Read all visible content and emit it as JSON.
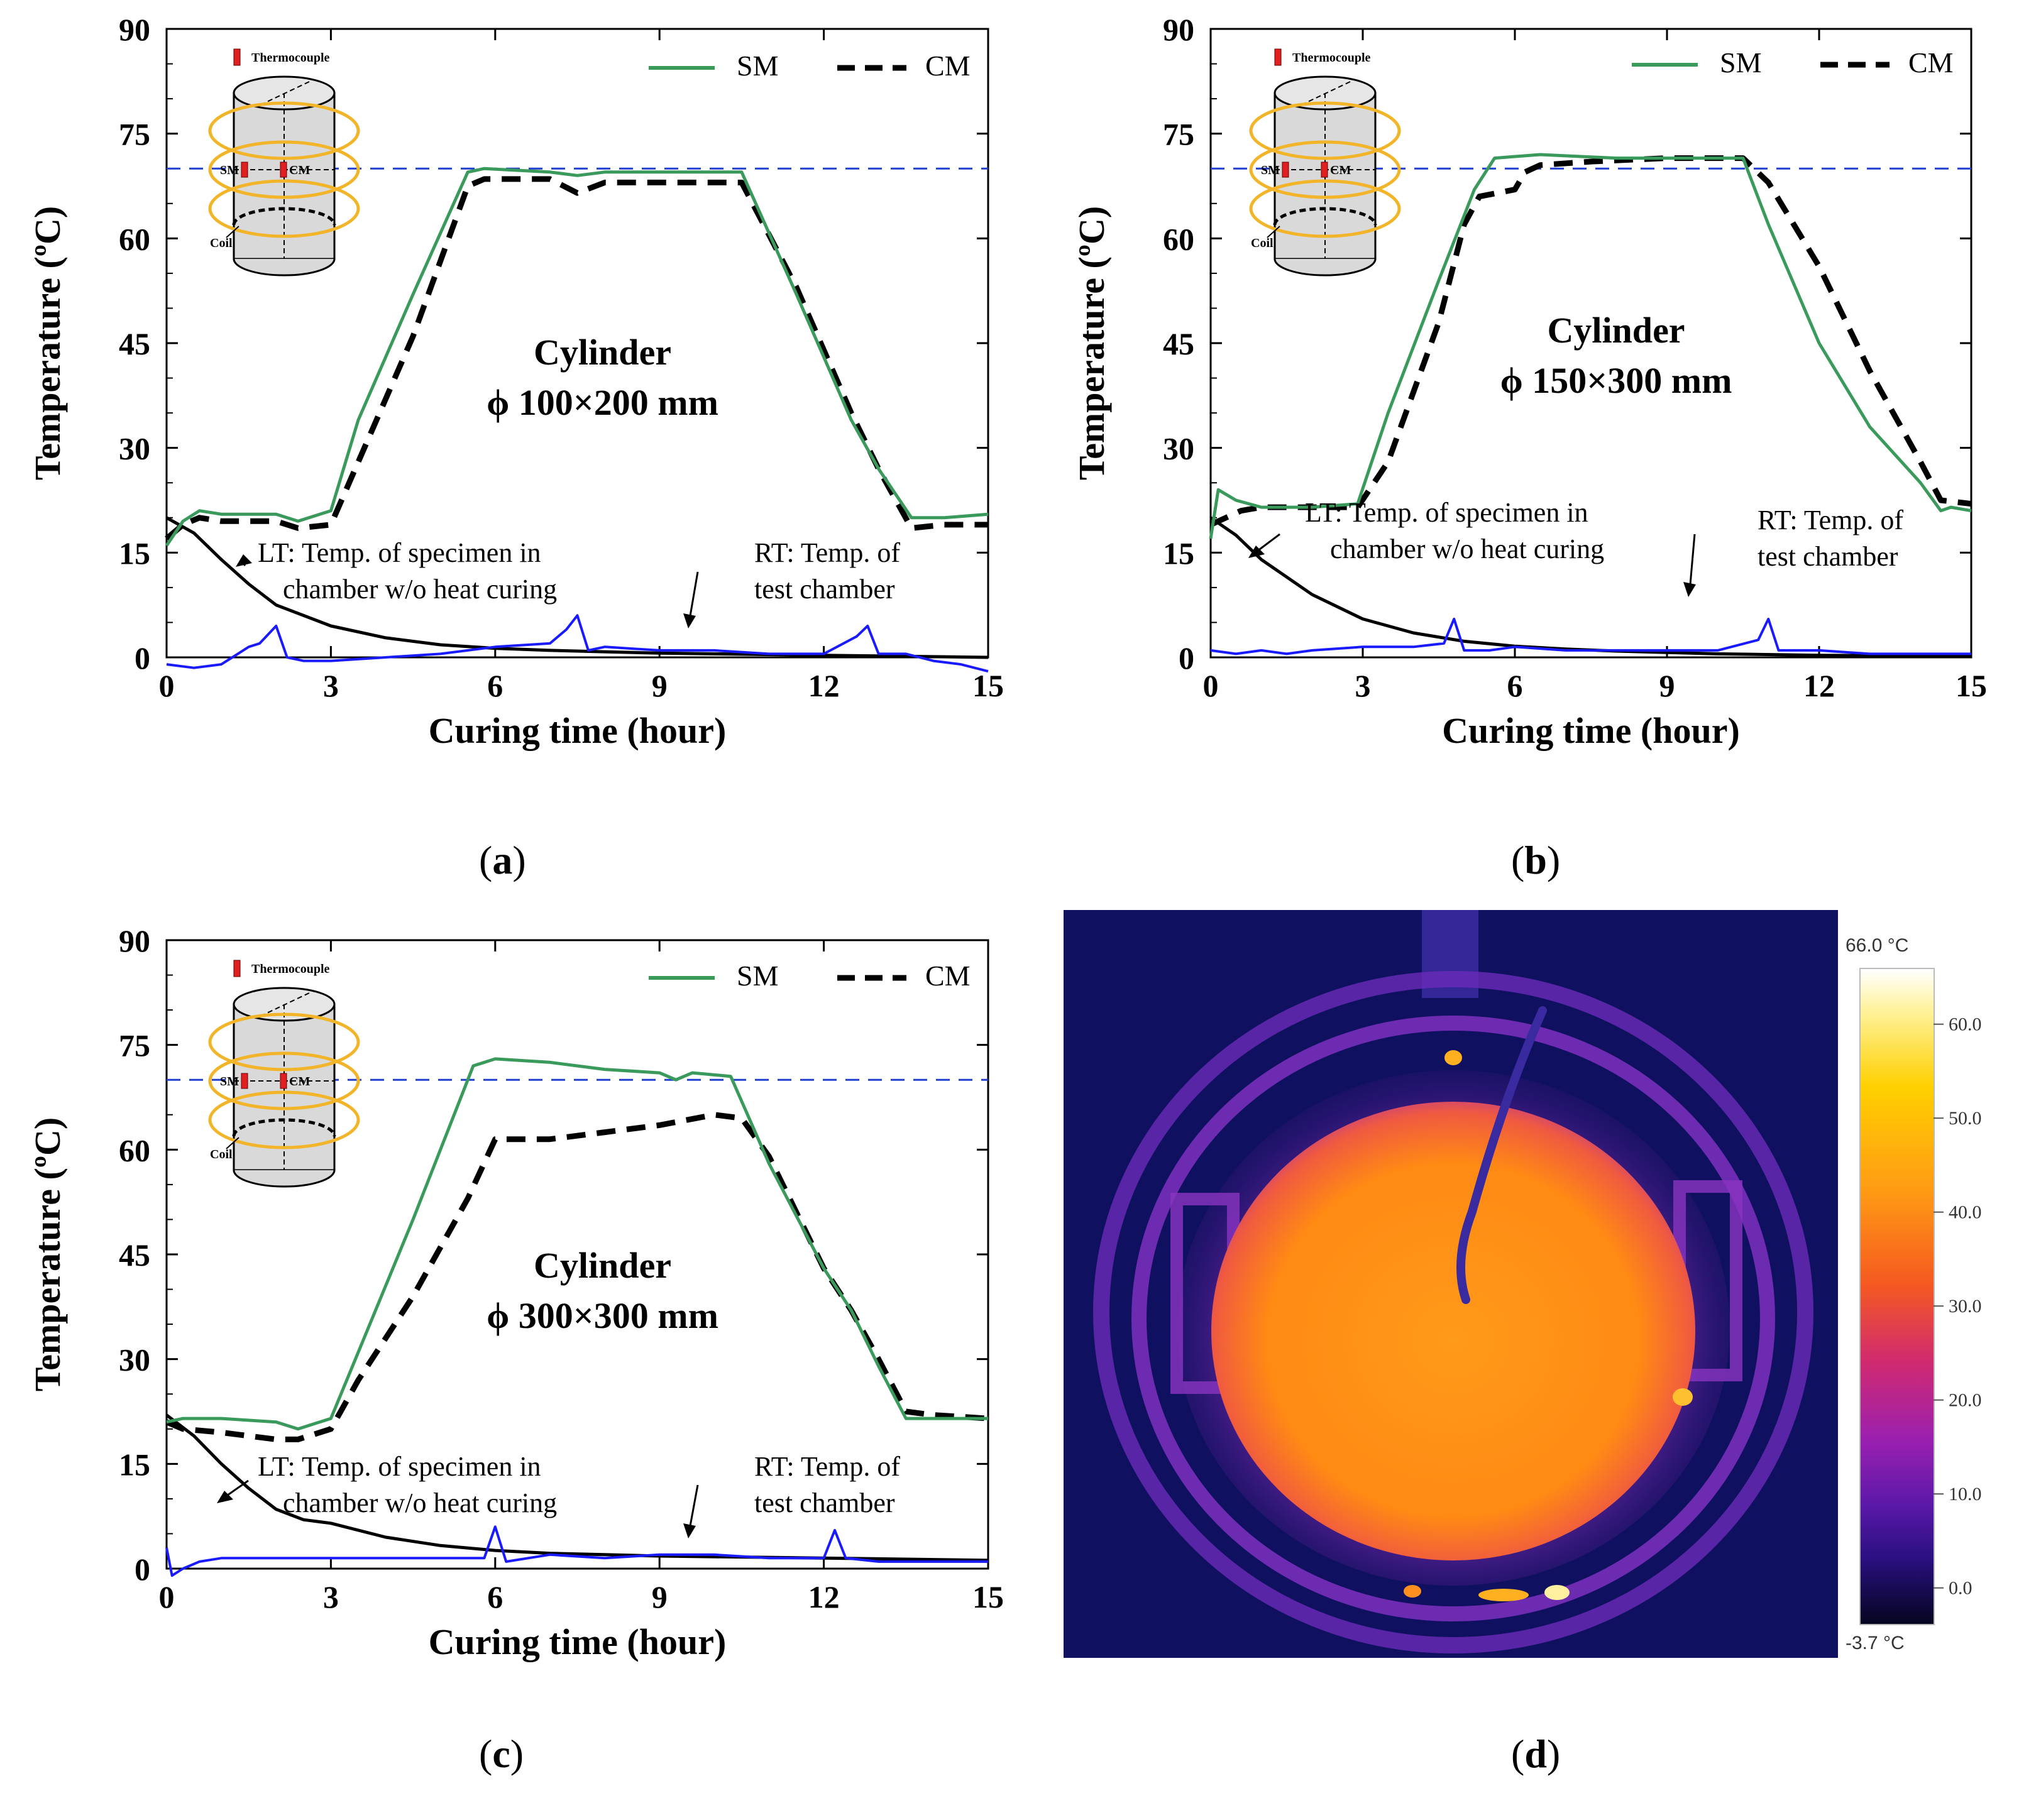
{
  "chart_data": [
    {
      "panel": "a",
      "type": "line",
      "title": "Cylinder",
      "subtitle": "ϕ 100×200 mm",
      "xlabel": "Curing time (hour)",
      "ylabel": "Temperature (ºC)",
      "xlim": [
        0,
        15
      ],
      "ylim": [
        0,
        90
      ],
      "xticks": [
        "0",
        "3",
        "6",
        "9",
        "12",
        "15"
      ],
      "yticks": [
        "0",
        "15",
        "30",
        "45",
        "60",
        "75",
        "90"
      ],
      "reference_line": 70,
      "legend": {
        "sm": "SM",
        "cm": "CM"
      },
      "inset": {
        "thermocouple": "Thermocouple",
        "sm": "SM",
        "cm": "CM",
        "coil": "Coil"
      },
      "annotations": {
        "lt_line1": "LT: Temp. of specimen in",
        "lt_line2": "chamber w/o heat curing",
        "rt_line1": "RT: Temp. of",
        "rt_line2": "test chamber"
      },
      "series": [
        {
          "name": "SM",
          "color": "#3a9a5b",
          "dash": false,
          "x": [
            0,
            0.3,
            0.6,
            1.0,
            2.0,
            2.4,
            3.0,
            3.5,
            4.5,
            5.5,
            5.8,
            7.0,
            7.5,
            8.0,
            9.5,
            10.5,
            11.5,
            12.5,
            13.0,
            13.6,
            14.2,
            15.0
          ],
          "values": [
            16,
            19.5,
            21,
            20.5,
            20.5,
            19.5,
            21,
            34,
            52,
            69.5,
            70,
            69.5,
            69,
            69.5,
            69.5,
            69.5,
            52,
            34,
            27,
            20,
            20,
            20.5
          ]
        },
        {
          "name": "CM",
          "color": "#000000",
          "dash": true,
          "x": [
            0,
            0.3,
            0.6,
            1.0,
            2.0,
            2.4,
            3.0,
            3.5,
            4.5,
            5.5,
            5.8,
            7.0,
            7.5,
            8.0,
            9.5,
            10.5,
            11.5,
            12.5,
            13.0,
            13.6,
            14.2,
            15.0
          ],
          "values": [
            17,
            19,
            20,
            19.5,
            19.5,
            18.5,
            19,
            28,
            46,
            67.5,
            68.5,
            68.5,
            66.5,
            68,
            68,
            68,
            53,
            35,
            27,
            18.5,
            19,
            19
          ]
        },
        {
          "name": "LT",
          "color": "#000000",
          "dash": false,
          "x": [
            0,
            0.5,
            1,
            1.5,
            2,
            3,
            4,
            5,
            6,
            7,
            8,
            9,
            10,
            12,
            15
          ],
          "values": [
            20,
            17.8,
            14,
            10.5,
            7.5,
            4.5,
            2.8,
            1.8,
            1.3,
            1.0,
            0.8,
            0.6,
            0.5,
            0.3,
            0
          ]
        },
        {
          "name": "RT",
          "color": "#1a1aff",
          "dash": false,
          "x": [
            0,
            0.5,
            1.0,
            1.2,
            1.5,
            1.7,
            2.0,
            2.2,
            2.5,
            3.0,
            4.0,
            5.0,
            6.0,
            7.0,
            7.3,
            7.5,
            7.7,
            8.0,
            9.0,
            10.0,
            11.0,
            12.0,
            12.6,
            12.8,
            13.0,
            13.5,
            14.0,
            14.5,
            15.0
          ],
          "values": [
            -1,
            -1.5,
            -1,
            0,
            1.5,
            2,
            4.5,
            0,
            -0.5,
            -0.5,
            0,
            0.5,
            1.5,
            2,
            4,
            6,
            1,
            1.5,
            1,
            1,
            0.5,
            0.5,
            3,
            4.5,
            0.5,
            0.5,
            -0.5,
            -1,
            -2
          ]
        }
      ]
    },
    {
      "panel": "b",
      "type": "line",
      "title": "Cylinder",
      "subtitle": "ϕ 150×300 mm",
      "xlabel": "Curing time (hour)",
      "ylabel": "Temperature (ºC)",
      "xlim": [
        0,
        15
      ],
      "ylim": [
        0,
        90
      ],
      "xticks": [
        "0",
        "3",
        "6",
        "9",
        "12",
        "15"
      ],
      "yticks": [
        "0",
        "15",
        "30",
        "45",
        "60",
        "75",
        "90"
      ],
      "reference_line": 70,
      "legend": {
        "sm": "SM",
        "cm": "CM"
      },
      "inset": {
        "thermocouple": "Thermocouple",
        "sm": "SM",
        "cm": "CM",
        "coil": "Coil"
      },
      "annotations": {
        "lt_line1": "LT: Temp. of specimen in",
        "lt_line2": "chamber w/o heat curing",
        "rt_line1": "RT: Temp. of",
        "rt_line2": "test chamber"
      },
      "series": [
        {
          "name": "SM",
          "color": "#3a9a5b",
          "dash": false,
          "x": [
            0,
            0.15,
            0.5,
            1.0,
            2.0,
            2.9,
            3.5,
            4.5,
            5.2,
            5.6,
            6.5,
            8.0,
            9.5,
            10.5,
            11.0,
            12.0,
            13.0,
            14.0,
            14.4,
            14.6,
            15.0
          ],
          "values": [
            17,
            24,
            22.5,
            21.5,
            21.5,
            22,
            35,
            54,
            67,
            71.5,
            72,
            71.5,
            71.5,
            71.5,
            62,
            45,
            33,
            25,
            21,
            21.5,
            21
          ]
        },
        {
          "name": "CM",
          "color": "#000000",
          "dash": true,
          "x": [
            0,
            0.3,
            0.6,
            1.0,
            2.0,
            2.9,
            3.5,
            4.5,
            5.0,
            5.3,
            6.0,
            6.2,
            6.5,
            7.5,
            9.0,
            10.5,
            11.0,
            12.0,
            13.0,
            14.0,
            14.4,
            15.0
          ],
          "values": [
            19,
            20,
            21,
            21.5,
            21.5,
            21.5,
            28,
            48,
            62,
            66,
            67,
            69.5,
            70.5,
            71,
            71.5,
            71.5,
            68,
            56,
            41,
            28,
            22.5,
            22
          ]
        },
        {
          "name": "LT",
          "color": "#000000",
          "dash": false,
          "x": [
            0,
            0.5,
            1,
            1.5,
            2,
            3,
            4,
            5,
            6,
            7,
            8,
            9,
            10,
            12,
            15
          ],
          "values": [
            20,
            17.5,
            14,
            11.5,
            9,
            5.5,
            3.5,
            2.3,
            1.6,
            1.2,
            0.9,
            0.7,
            0.5,
            0.3,
            0.2
          ]
        },
        {
          "name": "RT",
          "color": "#1a1aff",
          "dash": false,
          "x": [
            0,
            0.5,
            1.0,
            1.5,
            2.0,
            3.0,
            4.0,
            4.6,
            4.8,
            5.0,
            5.5,
            6.0,
            7.0,
            8.0,
            9.0,
            10.0,
            10.8,
            11.0,
            11.2,
            12.0,
            13.0,
            14.0,
            15.0
          ],
          "values": [
            1,
            0.5,
            1,
            0.5,
            1,
            1.5,
            1.5,
            2,
            5.5,
            1,
            1,
            1.5,
            1,
            1,
            1,
            1,
            2.5,
            5.5,
            1,
            1,
            0.5,
            0.5,
            0.5
          ]
        }
      ]
    },
    {
      "panel": "c",
      "type": "line",
      "title": "Cylinder",
      "subtitle": "ϕ 300×300 mm",
      "xlabel": "Curing time (hour)",
      "ylabel": "Temperature (ºC)",
      "xlim": [
        0,
        15
      ],
      "ylim": [
        0,
        90
      ],
      "xticks": [
        "0",
        "3",
        "6",
        "9",
        "12",
        "15"
      ],
      "yticks": [
        "0",
        "15",
        "30",
        "45",
        "60",
        "75",
        "90"
      ],
      "reference_line": 70,
      "legend": {
        "sm": "SM",
        "cm": "CM"
      },
      "inset": {
        "thermocouple": "Thermocouple",
        "sm": "SM",
        "cm": "CM",
        "coil": "Coil"
      },
      "annotations": {
        "lt_line1": "LT: Temp. of specimen in",
        "lt_line2": "chamber w/o heat curing",
        "rt_line1": "RT: Temp. of",
        "rt_line2": "test chamber"
      },
      "series": [
        {
          "name": "SM",
          "color": "#3a9a5b",
          "dash": false,
          "x": [
            0,
            0.3,
            1.0,
            2.0,
            2.4,
            3.0,
            3.5,
            4.5,
            5.3,
            5.6,
            6.0,
            7.0,
            8.0,
            9.0,
            9.3,
            9.6,
            10.3,
            11.0,
            12.0,
            12.5,
            13.0,
            13.5,
            14.0,
            15.0
          ],
          "values": [
            21,
            21.5,
            21.5,
            21,
            20,
            21.5,
            31,
            50,
            66,
            72,
            73,
            72.5,
            71.5,
            71,
            70,
            71,
            70.5,
            58,
            43,
            37,
            29,
            21.5,
            21.5,
            21.5
          ]
        },
        {
          "name": "CM",
          "color": "#000000",
          "dash": true,
          "x": [
            0,
            0.3,
            1.0,
            2.0,
            2.4,
            3.0,
            3.5,
            4.5,
            5.5,
            6.0,
            7.0,
            8.0,
            9.0,
            10.0,
            10.5,
            11.0,
            12.0,
            12.5,
            13.0,
            13.5,
            14.0,
            15.0
          ],
          "values": [
            21,
            20,
            19.5,
            18.5,
            18.5,
            20,
            27,
            39,
            53,
            61.5,
            61.5,
            62.5,
            63.5,
            65,
            64.5,
            59,
            43,
            37,
            30,
            22.5,
            22,
            21.5
          ]
        },
        {
          "name": "LT",
          "color": "#000000",
          "dash": false,
          "x": [
            0,
            0.5,
            1,
            1.5,
            2,
            2.5,
            3,
            4,
            5,
            6,
            7,
            8,
            9,
            10,
            12,
            15
          ],
          "values": [
            22,
            19,
            15,
            11.5,
            8.5,
            7,
            6.5,
            4.5,
            3.3,
            2.6,
            2.2,
            2,
            1.8,
            1.7,
            1.5,
            1.2
          ]
        },
        {
          "name": "RT",
          "color": "#1a1aff",
          "dash": false,
          "x": [
            0,
            0.1,
            0.3,
            0.6,
            1.0,
            2.0,
            3.0,
            4.0,
            5.0,
            5.8,
            6.0,
            6.2,
            7.0,
            8.0,
            9.0,
            10.0,
            11.0,
            12.0,
            12.2,
            12.4,
            13.0,
            14.0,
            15.0
          ],
          "values": [
            3,
            -1,
            0,
            1,
            1.5,
            1.5,
            1.5,
            1.5,
            1.5,
            1.5,
            6,
            1,
            2,
            1.5,
            2,
            2,
            1.5,
            1.5,
            5.5,
            1.5,
            1,
            1,
            1
          ]
        }
      ]
    }
  ],
  "captions": {
    "a": "a",
    "b": "b",
    "c": "c",
    "d": "d"
  },
  "thermal": {
    "max_label": "66.0 °C",
    "min_label": "-3.7 °C",
    "scale_ticks": [
      "60.0",
      "50.0",
      "40.0",
      "30.0",
      "20.0",
      "10.0",
      "0.0"
    ]
  }
}
